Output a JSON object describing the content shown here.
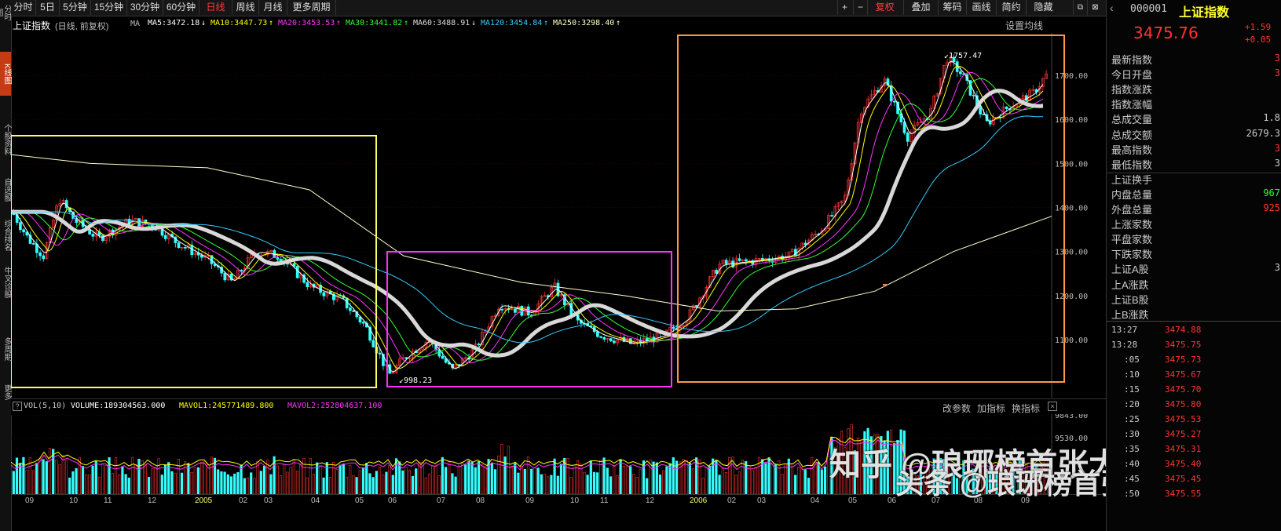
{
  "toolbar": {
    "periods": [
      "分时",
      "5日",
      "5分钟",
      "15分钟",
      "30分钟",
      "60分钟",
      "日线",
      "周线",
      "月线",
      "更多周期"
    ],
    "active_period": "日线",
    "right_buttons": [
      "+",
      "−",
      "复权",
      "叠加",
      "筹码",
      "画线",
      "简约",
      "隐藏"
    ]
  },
  "left_tabs": [
    "分时图",
    "K线图",
    "个股资料",
    "自选股",
    "综合排名",
    "牛叉诊股",
    "多周期",
    "更多"
  ],
  "ma_header": {
    "index_name": "上证指数",
    "mode": "(日线, 前复权)",
    "ma_label": "MA",
    "items": [
      {
        "text": "MA5:3472.18",
        "arrow": "↓",
        "color": "#ffffff"
      },
      {
        "text": "MA10:3447.73",
        "arrow": "↑",
        "color": "#ffff00"
      },
      {
        "text": "MA20:3453.53",
        "arrow": "↑",
        "color": "#ff33ff"
      },
      {
        "text": "MA30:3441.82",
        "arrow": "↑",
        "color": "#33ff33"
      },
      {
        "text": "MA60:3488.91",
        "arrow": "↓",
        "color": "#dddddd"
      },
      {
        "text": "MA120:3454.84",
        "arrow": "↑",
        "color": "#33ccff"
      },
      {
        "text": "MA250:3298.40",
        "arrow": "↑",
        "color": "#ffffcc"
      }
    ],
    "settings_label": "设置均线"
  },
  "price_axis": [
    "1700.00",
    "1600.00",
    "1500.00",
    "1400.00",
    "1300.00",
    "1200.00",
    "1100.00"
  ],
  "annotations": {
    "high": "1757.47",
    "low": "998.23"
  },
  "volume_header": {
    "label": "VOL(5,10)",
    "volume": "VOLUME:189304563.000",
    "mavol1": "MAVOL1:245771489.800",
    "mavol2": "MAVOL2:252804637.100",
    "links": [
      "改参数",
      "加指标",
      "换指标"
    ]
  },
  "volume_axis": [
    "9843.00",
    "9530.00"
  ],
  "x_axis": [
    "09",
    "10",
    "11",
    "12",
    "2005",
    "02",
    "03",
    "04",
    "05",
    "06",
    "07",
    "08",
    "09",
    "10",
    "11",
    "12",
    "2006",
    "02",
    "03",
    "04",
    "05",
    "06",
    "07",
    "08",
    "09"
  ],
  "quote": {
    "code": "000001",
    "name": "上证指数",
    "price": "3475.76",
    "change": "+1.59",
    "change_pct": "+0.05"
  },
  "stats": [
    {
      "label": "最新指数",
      "value": "3"
    },
    {
      "label": "今日开盘",
      "value": "3"
    },
    {
      "label": "指数涨跌",
      "value": ""
    },
    {
      "label": "指数涨幅",
      "value": ""
    },
    {
      "label": "总成交量",
      "value": "1.8"
    },
    {
      "label": "总成交额",
      "value": "2679.3"
    },
    {
      "label": "最高指数",
      "value": "3"
    },
    {
      "label": "最低指数",
      "value": "3"
    },
    {
      "label": "上证换手",
      "value": ""
    },
    {
      "label": "内盘总量",
      "value": "967"
    },
    {
      "label": "外盘总量",
      "value": "925"
    },
    {
      "label": "上涨家数",
      "value": ""
    },
    {
      "label": "平盘家数",
      "value": ""
    },
    {
      "label": "下跌家数",
      "value": ""
    },
    {
      "label": "上证A股",
      "value": "3"
    },
    {
      "label": "上A涨跌",
      "value": ""
    },
    {
      "label": "上证B股",
      "value": ""
    },
    {
      "label": "上B涨跌",
      "value": ""
    }
  ],
  "ticks": [
    {
      "time": "13:27",
      "price": "3474.88"
    },
    {
      "time": "13:28",
      "price": "3475.75"
    },
    {
      "time": ":05",
      "price": "3475.73"
    },
    {
      "time": ":10",
      "price": "3475.67"
    },
    {
      "time": ":15",
      "price": "3475.70"
    },
    {
      "time": ":20",
      "price": "3475.80"
    },
    {
      "time": ":25",
      "price": "3475.53"
    },
    {
      "time": ":30",
      "price": "3475.27"
    },
    {
      "time": ":35",
      "price": "3475.31"
    },
    {
      "time": ":40",
      "price": "3475.40"
    },
    {
      "time": ":45",
      "price": "3475.45"
    },
    {
      "time": ":50",
      "price": "3475.55"
    }
  ],
  "watermarks": [
    "知乎 @琅琊榜首张大仙",
    "头条 @琅琊榜首张大仙"
  ],
  "colors": {
    "up": "#ff3333",
    "down": "#33ffff",
    "yellow_box": "#ffff66",
    "magenta_box": "#ff33ff",
    "orange_box": "#ff9944",
    "ma60": "#d8d8d8"
  }
}
